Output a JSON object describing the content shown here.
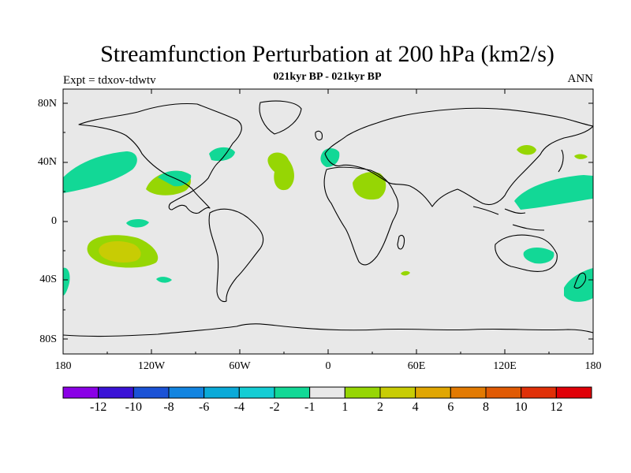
{
  "title": "Streamfunction Perturbation at 200 hPa (km2/s)",
  "subtitle": "021kyr BP - 021kyr BP",
  "left_label": "Expt = tdxov-tdwtv",
  "right_label": "ANN",
  "latitude_labels": [
    "80N",
    "40N",
    "0",
    "40S",
    "80S"
  ],
  "longitude_labels": [
    "180",
    "120W",
    "60W",
    "0",
    "60E",
    "120E",
    "180"
  ],
  "colorbar": {
    "labels": [
      "-12",
      "-10",
      "-8",
      "-6",
      "-4",
      "-2",
      "-1",
      "1",
      "2",
      "4",
      "6",
      "8",
      "10",
      "12"
    ],
    "colors": [
      "#8a00e6",
      "#3a12d6",
      "#1a52d6",
      "#1284e0",
      "#0aaad8",
      "#14cdd4",
      "#12d896",
      "#e8e8e8",
      "#96d604",
      "#c8cc04",
      "#e0a602",
      "#e27a02",
      "#e05a04",
      "#e03008",
      "#e00008"
    ]
  },
  "colors": {
    "ocean_background": "#e8e8e8",
    "coastline": "#000000"
  }
}
